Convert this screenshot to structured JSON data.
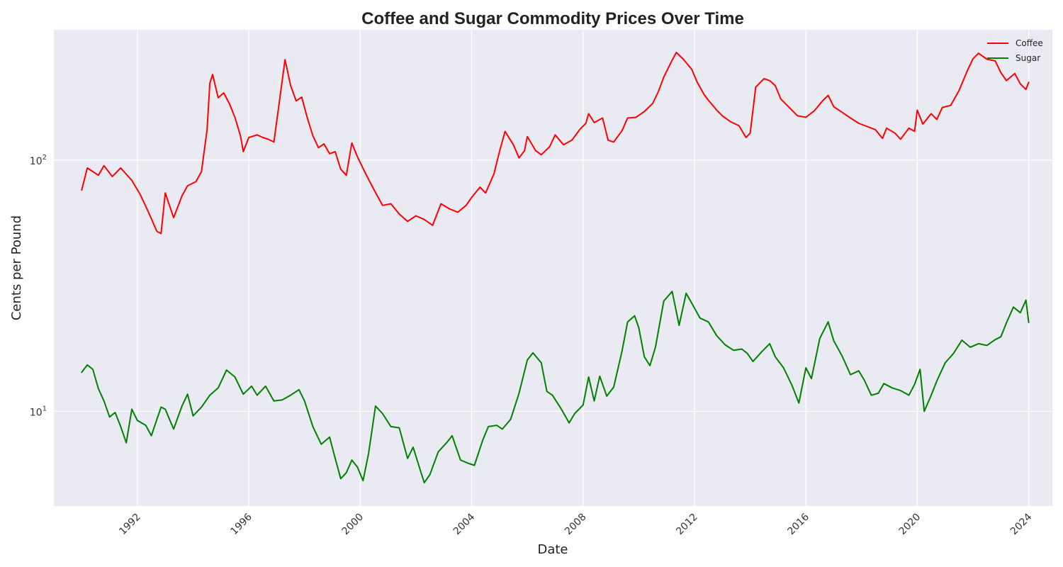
{
  "chart_data": {
    "type": "line",
    "title": "Coffee and Sugar Commodity Prices Over Time",
    "xlabel": "Date",
    "ylabel": "Cents per Pound",
    "yscale": "log",
    "ylim": [
      4.2,
      330
    ],
    "xlim": [
      1989.0,
      2024.85
    ],
    "grid": true,
    "legend_position": "top-right",
    "x_ticks": [
      {
        "value": 1992,
        "label": "1992"
      },
      {
        "value": 1996,
        "label": "1996"
      },
      {
        "value": 2000,
        "label": "2000"
      },
      {
        "value": 2004,
        "label": "2004"
      },
      {
        "value": 2008,
        "label": "2008"
      },
      {
        "value": 2012,
        "label": "2012"
      },
      {
        "value": 2016,
        "label": "2016"
      },
      {
        "value": 2020,
        "label": "2020"
      },
      {
        "value": 2024,
        "label": "2024"
      }
    ],
    "y_ticks": [
      {
        "value": 10,
        "base": "10",
        "exp": "1"
      },
      {
        "value": 100,
        "base": "10",
        "exp": "2"
      }
    ],
    "series": [
      {
        "name": "Coffee",
        "color": "#ff0000",
        "points": [
          [
            1990.0,
            76
          ],
          [
            1990.2,
            93
          ],
          [
            1990.6,
            87
          ],
          [
            1990.8,
            95
          ],
          [
            1991.1,
            86
          ],
          [
            1991.4,
            93
          ],
          [
            1991.8,
            83
          ],
          [
            1992.1,
            73
          ],
          [
            1992.4,
            62
          ],
          [
            1992.7,
            52
          ],
          [
            1992.85,
            51
          ],
          [
            1993.0,
            74
          ],
          [
            1993.3,
            59
          ],
          [
            1993.6,
            72
          ],
          [
            1993.8,
            79
          ],
          [
            1994.1,
            82
          ],
          [
            1994.3,
            90
          ],
          [
            1994.5,
            132
          ],
          [
            1994.6,
            202
          ],
          [
            1994.7,
            219
          ],
          [
            1994.9,
            177
          ],
          [
            1995.1,
            185
          ],
          [
            1995.3,
            168
          ],
          [
            1995.5,
            148
          ],
          [
            1995.7,
            125
          ],
          [
            1995.8,
            108
          ],
          [
            1996.0,
            123
          ],
          [
            1996.3,
            126
          ],
          [
            1996.5,
            123
          ],
          [
            1996.7,
            121
          ],
          [
            1996.9,
            118
          ],
          [
            1997.1,
            172
          ],
          [
            1997.3,
            251
          ],
          [
            1997.5,
            198
          ],
          [
            1997.7,
            172
          ],
          [
            1997.9,
            178
          ],
          [
            1998.1,
            147
          ],
          [
            1998.3,
            125
          ],
          [
            1998.5,
            112
          ],
          [
            1998.7,
            116
          ],
          [
            1998.9,
            106
          ],
          [
            1999.1,
            108
          ],
          [
            1999.3,
            92
          ],
          [
            1999.5,
            87
          ],
          [
            1999.7,
            117
          ],
          [
            1999.9,
            103
          ],
          [
            2000.2,
            88
          ],
          [
            2000.5,
            76
          ],
          [
            2000.8,
            66
          ],
          [
            2001.1,
            67
          ],
          [
            2001.4,
            61
          ],
          [
            2001.7,
            57
          ],
          [
            2002.0,
            60
          ],
          [
            2002.3,
            58
          ],
          [
            2002.6,
            55
          ],
          [
            2002.9,
            67
          ],
          [
            2003.2,
            64
          ],
          [
            2003.5,
            62
          ],
          [
            2003.8,
            66
          ],
          [
            2004.0,
            71
          ],
          [
            2004.3,
            78
          ],
          [
            2004.5,
            74
          ],
          [
            2004.8,
            88
          ],
          [
            2005.0,
            108
          ],
          [
            2005.2,
            130
          ],
          [
            2005.5,
            115
          ],
          [
            2005.7,
            102
          ],
          [
            2005.9,
            109
          ],
          [
            2006.0,
            124
          ],
          [
            2006.3,
            109
          ],
          [
            2006.5,
            105
          ],
          [
            2006.8,
            113
          ],
          [
            2007.0,
            126
          ],
          [
            2007.3,
            115
          ],
          [
            2007.6,
            120
          ],
          [
            2007.9,
            133
          ],
          [
            2008.1,
            140
          ],
          [
            2008.2,
            153
          ],
          [
            2008.4,
            141
          ],
          [
            2008.7,
            147
          ],
          [
            2008.9,
            120
          ],
          [
            2009.1,
            118
          ],
          [
            2009.4,
            131
          ],
          [
            2009.6,
            147
          ],
          [
            2009.9,
            148
          ],
          [
            2010.2,
            156
          ],
          [
            2010.5,
            168
          ],
          [
            2010.7,
            187
          ],
          [
            2010.9,
            214
          ],
          [
            2011.2,
            250
          ],
          [
            2011.35,
            268
          ],
          [
            2011.6,
            252
          ],
          [
            2011.9,
            230
          ],
          [
            2012.1,
            204
          ],
          [
            2012.35,
            182
          ],
          [
            2012.5,
            173
          ],
          [
            2012.8,
            158
          ],
          [
            2013.0,
            150
          ],
          [
            2013.3,
            142
          ],
          [
            2013.6,
            137
          ],
          [
            2013.85,
            123
          ],
          [
            2014.0,
            128
          ],
          [
            2014.2,
            195
          ],
          [
            2014.5,
            211
          ],
          [
            2014.7,
            207
          ],
          [
            2014.9,
            198
          ],
          [
            2015.1,
            175
          ],
          [
            2015.4,
            162
          ],
          [
            2015.7,
            150
          ],
          [
            2016.0,
            148
          ],
          [
            2016.3,
            157
          ],
          [
            2016.6,
            172
          ],
          [
            2016.8,
            181
          ],
          [
            2017.0,
            163
          ],
          [
            2017.3,
            155
          ],
          [
            2017.6,
            147
          ],
          [
            2017.9,
            140
          ],
          [
            2018.2,
            136
          ],
          [
            2018.5,
            132
          ],
          [
            2018.75,
            122
          ],
          [
            2018.9,
            134
          ],
          [
            2019.2,
            128
          ],
          [
            2019.4,
            121
          ],
          [
            2019.7,
            134
          ],
          [
            2019.9,
            130
          ],
          [
            2020.0,
            158
          ],
          [
            2020.2,
            139
          ],
          [
            2020.5,
            153
          ],
          [
            2020.7,
            145
          ],
          [
            2020.9,
            162
          ],
          [
            2021.2,
            165
          ],
          [
            2021.5,
            189
          ],
          [
            2021.8,
            227
          ],
          [
            2022.0,
            253
          ],
          [
            2022.2,
            266
          ],
          [
            2022.5,
            252
          ],
          [
            2022.8,
            248
          ],
          [
            2023.0,
            223
          ],
          [
            2023.2,
            207
          ],
          [
            2023.5,
            221
          ],
          [
            2023.7,
            201
          ],
          [
            2023.9,
            191
          ],
          [
            2024.0,
            204
          ]
        ]
      },
      {
        "name": "Sugar",
        "color": "#008000",
        "points": [
          [
            1990.0,
            14.3
          ],
          [
            1990.2,
            15.3
          ],
          [
            1990.4,
            14.7
          ],
          [
            1990.6,
            12.3
          ],
          [
            1990.8,
            11.0
          ],
          [
            1991.0,
            9.5
          ],
          [
            1991.2,
            9.9
          ],
          [
            1991.4,
            8.7
          ],
          [
            1991.6,
            7.5
          ],
          [
            1991.8,
            10.2
          ],
          [
            1992.0,
            9.2
          ],
          [
            1992.3,
            8.8
          ],
          [
            1992.5,
            8.0
          ],
          [
            1992.7,
            9.3
          ],
          [
            1992.85,
            10.4
          ],
          [
            1993.0,
            10.2
          ],
          [
            1993.3,
            8.5
          ],
          [
            1993.6,
            10.5
          ],
          [
            1993.8,
            11.7
          ],
          [
            1994.0,
            9.6
          ],
          [
            1994.3,
            10.4
          ],
          [
            1994.6,
            11.6
          ],
          [
            1994.9,
            12.4
          ],
          [
            1995.2,
            14.6
          ],
          [
            1995.5,
            13.7
          ],
          [
            1995.8,
            11.7
          ],
          [
            1996.1,
            12.6
          ],
          [
            1996.3,
            11.6
          ],
          [
            1996.6,
            12.6
          ],
          [
            1996.9,
            11.0
          ],
          [
            1997.2,
            11.1
          ],
          [
            1997.5,
            11.6
          ],
          [
            1997.8,
            12.2
          ],
          [
            1998.0,
            11.0
          ],
          [
            1998.3,
            8.7
          ],
          [
            1998.6,
            7.4
          ],
          [
            1998.9,
            7.9
          ],
          [
            1999.1,
            6.5
          ],
          [
            1999.3,
            5.4
          ],
          [
            1999.5,
            5.7
          ],
          [
            1999.7,
            6.4
          ],
          [
            1999.9,
            6.0
          ],
          [
            2000.1,
            5.3
          ],
          [
            2000.3,
            6.8
          ],
          [
            2000.55,
            10.5
          ],
          [
            2000.8,
            9.8
          ],
          [
            2001.1,
            8.7
          ],
          [
            2001.4,
            8.6
          ],
          [
            2001.7,
            6.5
          ],
          [
            2001.9,
            7.2
          ],
          [
            2002.1,
            6.1
          ],
          [
            2002.3,
            5.2
          ],
          [
            2002.5,
            5.6
          ],
          [
            2002.8,
            6.9
          ],
          [
            2003.1,
            7.5
          ],
          [
            2003.3,
            8.0
          ],
          [
            2003.6,
            6.4
          ],
          [
            2003.9,
            6.2
          ],
          [
            2004.1,
            6.1
          ],
          [
            2004.4,
            7.7
          ],
          [
            2004.6,
            8.7
          ],
          [
            2004.9,
            8.8
          ],
          [
            2005.1,
            8.5
          ],
          [
            2005.4,
            9.3
          ],
          [
            2005.7,
            11.8
          ],
          [
            2006.0,
            16.0
          ],
          [
            2006.2,
            17.1
          ],
          [
            2006.5,
            15.6
          ],
          [
            2006.7,
            12.0
          ],
          [
            2006.9,
            11.6
          ],
          [
            2007.2,
            10.3
          ],
          [
            2007.5,
            9.0
          ],
          [
            2007.7,
            9.8
          ],
          [
            2008.0,
            10.6
          ],
          [
            2008.2,
            13.7
          ],
          [
            2008.4,
            11.0
          ],
          [
            2008.6,
            13.8
          ],
          [
            2008.85,
            11.5
          ],
          [
            2009.1,
            12.5
          ],
          [
            2009.4,
            17.4
          ],
          [
            2009.6,
            22.7
          ],
          [
            2009.85,
            24.0
          ],
          [
            2010.0,
            21.5
          ],
          [
            2010.2,
            16.5
          ],
          [
            2010.4,
            15.2
          ],
          [
            2010.6,
            18.0
          ],
          [
            2010.9,
            27.5
          ],
          [
            2011.2,
            30.0
          ],
          [
            2011.45,
            22.0
          ],
          [
            2011.7,
            29.5
          ],
          [
            2011.9,
            27.0
          ],
          [
            2012.2,
            23.5
          ],
          [
            2012.5,
            22.7
          ],
          [
            2012.8,
            20.0
          ],
          [
            2013.1,
            18.4
          ],
          [
            2013.4,
            17.5
          ],
          [
            2013.7,
            17.7
          ],
          [
            2013.9,
            17.0
          ],
          [
            2014.1,
            15.8
          ],
          [
            2014.4,
            17.2
          ],
          [
            2014.7,
            18.6
          ],
          [
            2014.9,
            16.5
          ],
          [
            2015.2,
            14.9
          ],
          [
            2015.5,
            12.7
          ],
          [
            2015.75,
            10.8
          ],
          [
            2016.0,
            14.9
          ],
          [
            2016.2,
            13.5
          ],
          [
            2016.5,
            19.5
          ],
          [
            2016.8,
            22.7
          ],
          [
            2017.0,
            19.1
          ],
          [
            2017.3,
            16.6
          ],
          [
            2017.6,
            14.0
          ],
          [
            2017.9,
            14.5
          ],
          [
            2018.1,
            13.3
          ],
          [
            2018.35,
            11.6
          ],
          [
            2018.6,
            11.8
          ],
          [
            2018.8,
            12.9
          ],
          [
            2019.1,
            12.4
          ],
          [
            2019.4,
            12.1
          ],
          [
            2019.7,
            11.6
          ],
          [
            2019.9,
            12.8
          ],
          [
            2020.1,
            14.7
          ],
          [
            2020.25,
            10.0
          ],
          [
            2020.5,
            11.6
          ],
          [
            2020.7,
            13.2
          ],
          [
            2021.0,
            15.6
          ],
          [
            2021.3,
            17.0
          ],
          [
            2021.6,
            19.2
          ],
          [
            2021.9,
            18.0
          ],
          [
            2022.2,
            18.6
          ],
          [
            2022.5,
            18.3
          ],
          [
            2022.8,
            19.3
          ],
          [
            2023.0,
            19.8
          ],
          [
            2023.2,
            22.5
          ],
          [
            2023.45,
            26.0
          ],
          [
            2023.7,
            24.7
          ],
          [
            2023.9,
            27.7
          ],
          [
            2024.0,
            22.6
          ]
        ]
      }
    ]
  }
}
